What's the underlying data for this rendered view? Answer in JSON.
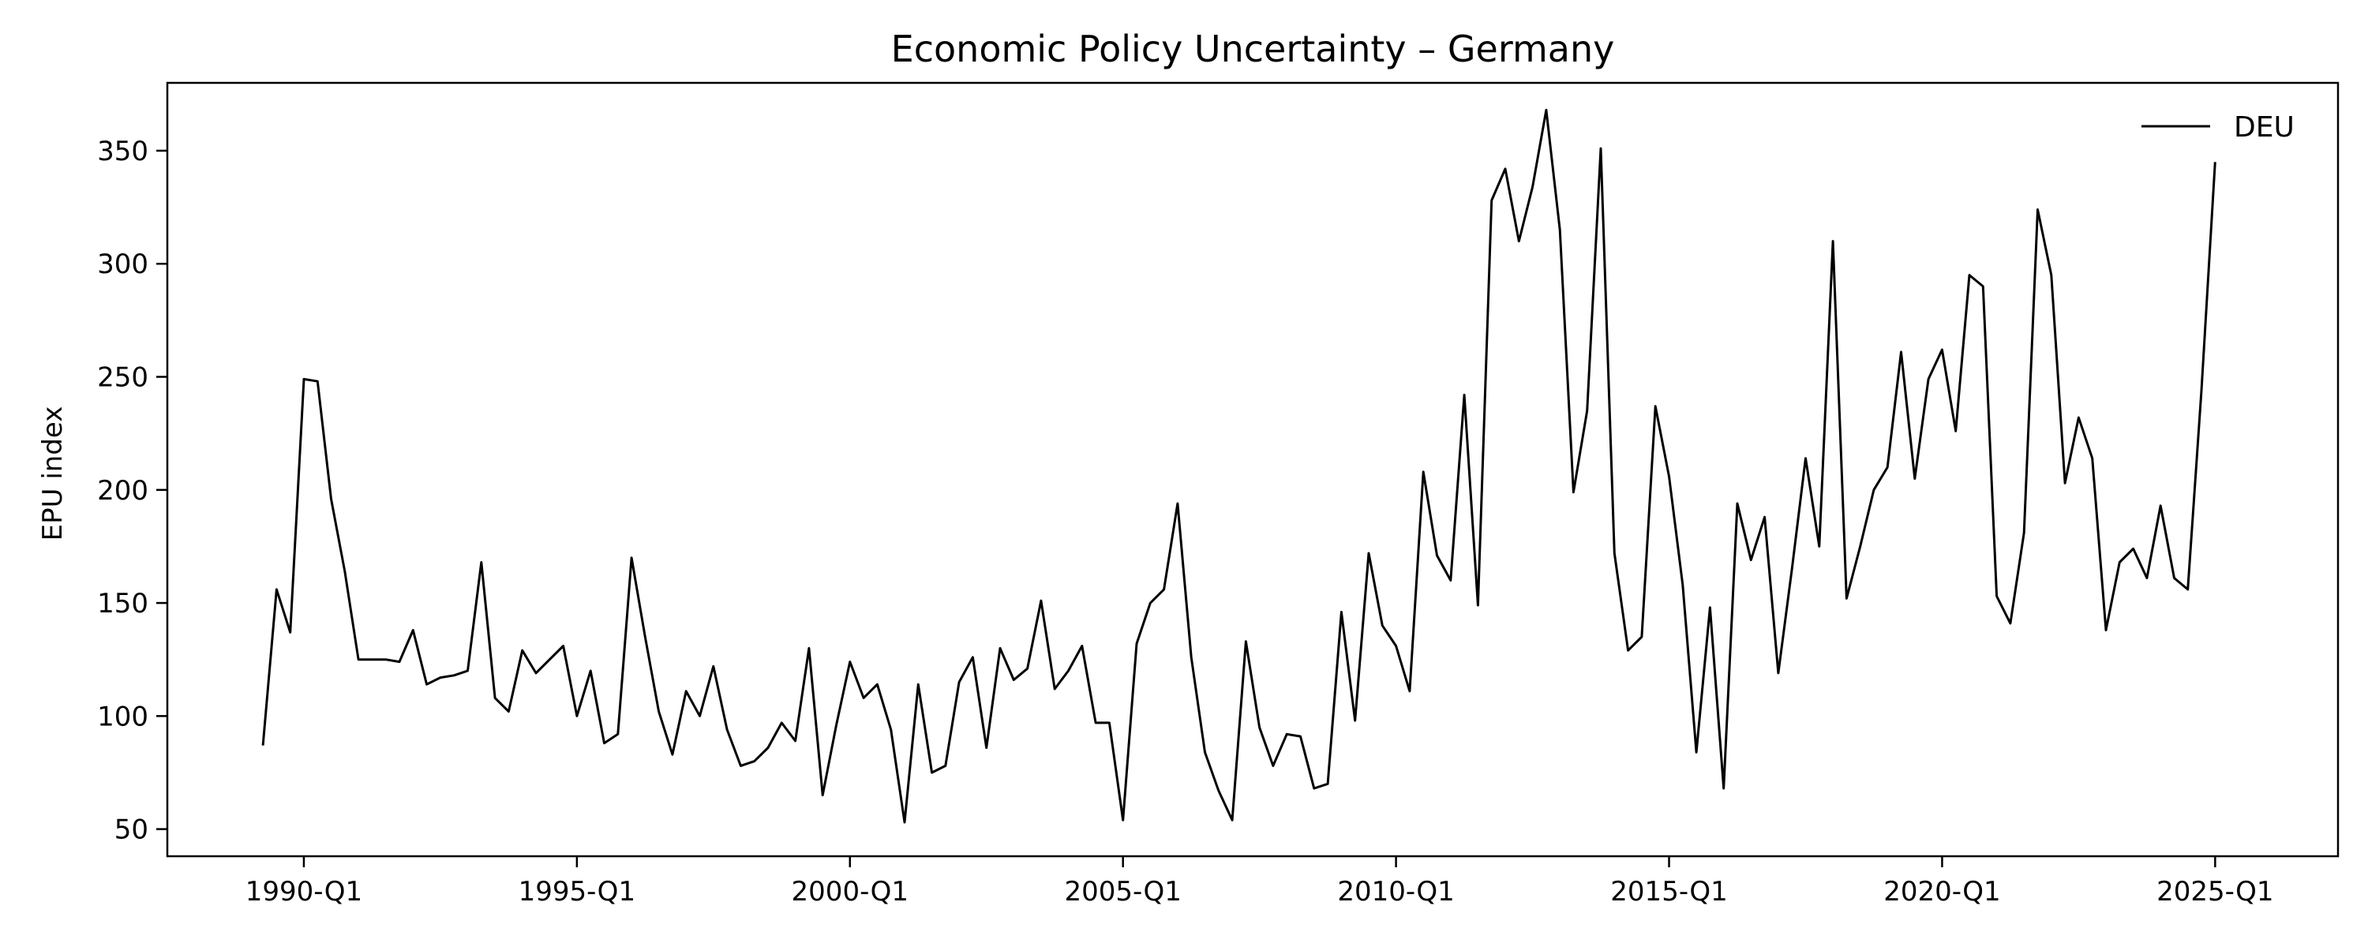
{
  "chart_data": {
    "type": "line",
    "title": "Economic Policy Uncertainty – Germany",
    "xlabel": "",
    "ylabel": "EPU index",
    "x_ticks": [
      "1990-Q1",
      "1995-Q1",
      "2000-Q1",
      "2005-Q1",
      "2010-Q1",
      "2015-Q1",
      "2020-Q1",
      "2025-Q1"
    ],
    "y_ticks": [
      50,
      100,
      150,
      200,
      250,
      300,
      350
    ],
    "ylim": [
      38,
      380
    ],
    "xlim": [
      "1987-Q3",
      "2027-Q2"
    ],
    "grid": false,
    "legend_position": "top-right",
    "series": [
      {
        "name": "DEU",
        "color": "#000000",
        "x": [
          "1989-Q2",
          "1989-Q3",
          "1989-Q4",
          "1990-Q1",
          "1990-Q2",
          "1990-Q3",
          "1990-Q4",
          "1991-Q1",
          "1991-Q2",
          "1991-Q3",
          "1991-Q4",
          "1992-Q1",
          "1992-Q2",
          "1992-Q3",
          "1992-Q4",
          "1993-Q1",
          "1993-Q2",
          "1993-Q3",
          "1993-Q4",
          "1994-Q1",
          "1994-Q2",
          "1994-Q3",
          "1994-Q4",
          "1995-Q1",
          "1995-Q2",
          "1995-Q3",
          "1995-Q4",
          "1996-Q1",
          "1996-Q2",
          "1996-Q3",
          "1996-Q4",
          "1997-Q1",
          "1997-Q2",
          "1997-Q3",
          "1997-Q4",
          "1998-Q1",
          "1998-Q2",
          "1998-Q3",
          "1998-Q4",
          "1999-Q1",
          "1999-Q2",
          "1999-Q3",
          "1999-Q4",
          "2000-Q1",
          "2000-Q2",
          "2000-Q3",
          "2000-Q4",
          "2001-Q1",
          "2001-Q2",
          "2001-Q3",
          "2001-Q4",
          "2002-Q1",
          "2002-Q2",
          "2002-Q3",
          "2002-Q4",
          "2003-Q1",
          "2003-Q2",
          "2003-Q3",
          "2003-Q4",
          "2004-Q1",
          "2004-Q2",
          "2004-Q3",
          "2004-Q4",
          "2005-Q1",
          "2005-Q2",
          "2005-Q3",
          "2005-Q4",
          "2006-Q1",
          "2006-Q2",
          "2006-Q3",
          "2006-Q4",
          "2007-Q1",
          "2007-Q2",
          "2007-Q3",
          "2007-Q4",
          "2008-Q1",
          "2008-Q2",
          "2008-Q3",
          "2008-Q4",
          "2009-Q1",
          "2009-Q2",
          "2009-Q3",
          "2009-Q4",
          "2010-Q1",
          "2010-Q2",
          "2010-Q3",
          "2010-Q4",
          "2011-Q1",
          "2011-Q2",
          "2011-Q3",
          "2011-Q4",
          "2012-Q1",
          "2012-Q2",
          "2012-Q3",
          "2012-Q4",
          "2013-Q1",
          "2013-Q2",
          "2013-Q3",
          "2013-Q4",
          "2014-Q1",
          "2014-Q2",
          "2014-Q3",
          "2014-Q4",
          "2015-Q1",
          "2015-Q2",
          "2015-Q3",
          "2015-Q4",
          "2016-Q1",
          "2016-Q2",
          "2016-Q3",
          "2016-Q4",
          "2017-Q1",
          "2017-Q2",
          "2017-Q3",
          "2017-Q4",
          "2018-Q1",
          "2018-Q2",
          "2018-Q3",
          "2018-Q4",
          "2019-Q1",
          "2019-Q2",
          "2019-Q3",
          "2019-Q4",
          "2020-Q1",
          "2020-Q2",
          "2020-Q3",
          "2020-Q4",
          "2021-Q1",
          "2021-Q2",
          "2021-Q3",
          "2021-Q4",
          "2022-Q1",
          "2022-Q2",
          "2022-Q3",
          "2022-Q4",
          "2023-Q1",
          "2023-Q2",
          "2023-Q3",
          "2023-Q4",
          "2024-Q1",
          "2024-Q2",
          "2024-Q3",
          "2024-Q4",
          "2025-Q1"
        ],
        "values": [
          87,
          156,
          137,
          249,
          248,
          196,
          164,
          125,
          125,
          125,
          124,
          138,
          114,
          117,
          118,
          120,
          168,
          108,
          102,
          129,
          119,
          125,
          131,
          100,
          120,
          88,
          92,
          170,
          135,
          102,
          83,
          111,
          100,
          122,
          94,
          78,
          80,
          86,
          97,
          89,
          130,
          65,
          96,
          124,
          108,
          114,
          94,
          53,
          114,
          75,
          78,
          115,
          126,
          86,
          130,
          116,
          121,
          151,
          112,
          120,
          131,
          97,
          97,
          54,
          132,
          150,
          156,
          194,
          126,
          84,
          67,
          54,
          133,
          95,
          78,
          92,
          91,
          68,
          70,
          146,
          98,
          172,
          140,
          131,
          111,
          208,
          171,
          160,
          242,
          149,
          328,
          342,
          310,
          334,
          368,
          315,
          199,
          235,
          351,
          172,
          129,
          135,
          237,
          206,
          158,
          84,
          148,
          68,
          194,
          169,
          188,
          119,
          165,
          214,
          175,
          310,
          152,
          175,
          200,
          210,
          261,
          205,
          249,
          262,
          226,
          295,
          290,
          153,
          141,
          181,
          324,
          295,
          203,
          232,
          214,
          138,
          168,
          174,
          161,
          193,
          161,
          156,
          244,
          345
        ]
      }
    ]
  }
}
